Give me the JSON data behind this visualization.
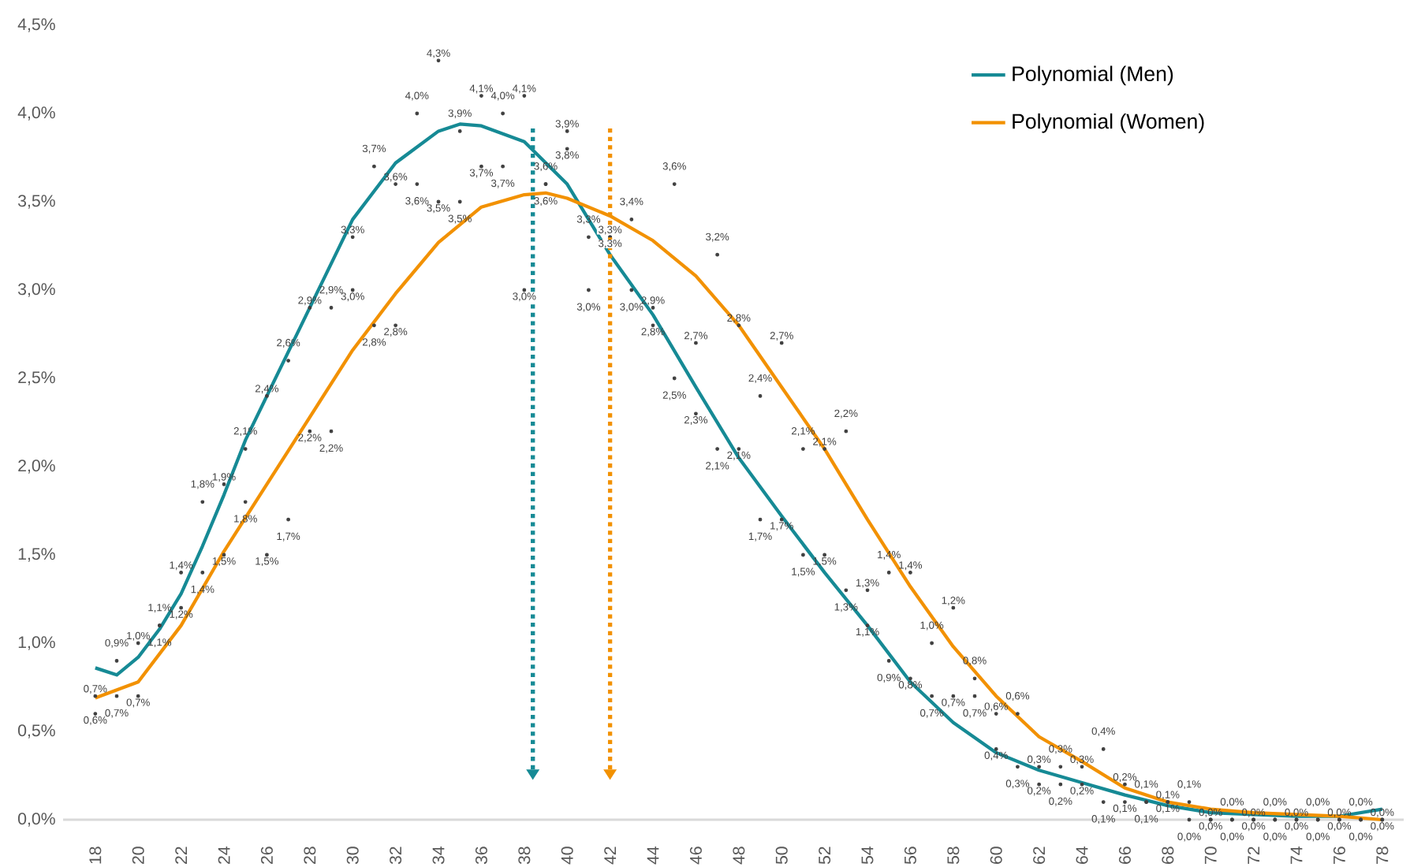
{
  "chart_data": {
    "type": "line",
    "xlim": [
      16.5,
      79
    ],
    "xticks": [
      18,
      20,
      22,
      24,
      26,
      28,
      30,
      32,
      34,
      36,
      38,
      40,
      42,
      44,
      46,
      48,
      50,
      52,
      54,
      56,
      58,
      60,
      62,
      64,
      66,
      68,
      70,
      72,
      74,
      76,
      78
    ],
    "ylim": [
      0,
      4.5
    ],
    "yticks": [
      {
        "value": 0,
        "label": "0,0%"
      },
      {
        "value": 0.5,
        "label": "0,5%"
      },
      {
        "value": 1,
        "label": "1,0%"
      },
      {
        "value": 1.5,
        "label": "1,5%"
      },
      {
        "value": 2,
        "label": "2,0%"
      },
      {
        "value": 2.5,
        "label": "2,5%"
      },
      {
        "value": 3,
        "label": "3,0%"
      },
      {
        "value": 3.5,
        "label": "3,5%"
      },
      {
        "value": 4,
        "label": "4,0%"
      },
      {
        "value": 4.5,
        "label": "4,5%"
      }
    ],
    "legend": "top right",
    "series": [
      {
        "name": "Polynomial (Men)",
        "color": "#168a95",
        "x": [
          18,
          19,
          20,
          21,
          22,
          23,
          24,
          25,
          26,
          27,
          28,
          30,
          32,
          34,
          35,
          36,
          38,
          40,
          42,
          44,
          46,
          48,
          50,
          52,
          54,
          56,
          58,
          60,
          62,
          64,
          66,
          68,
          70,
          72,
          74,
          76,
          78
        ],
        "values": [
          0.86,
          0.82,
          0.92,
          1.08,
          1.28,
          1.55,
          1.84,
          2.15,
          2.4,
          2.65,
          2.9,
          3.4,
          3.72,
          3.9,
          3.94,
          3.93,
          3.84,
          3.6,
          3.2,
          2.86,
          2.45,
          2.05,
          1.72,
          1.4,
          1.1,
          0.78,
          0.55,
          0.38,
          0.28,
          0.21,
          0.14,
          0.08,
          0.04,
          0.03,
          0.02,
          0.02,
          0.06
        ]
      },
      {
        "name": "Polynomial (Women)",
        "color": "#f29100",
        "x": [
          18,
          20,
          22,
          24,
          26,
          28,
          30,
          32,
          34,
          36,
          38,
          39,
          40,
          42,
          44,
          46,
          48,
          50,
          52,
          54,
          56,
          58,
          60,
          62,
          64,
          66,
          68,
          70,
          72,
          74,
          76,
          78
        ],
        "values": [
          0.69,
          0.78,
          1.1,
          1.52,
          1.9,
          2.28,
          2.66,
          2.98,
          3.27,
          3.47,
          3.54,
          3.55,
          3.52,
          3.42,
          3.28,
          3.08,
          2.8,
          2.45,
          2.1,
          1.7,
          1.32,
          0.98,
          0.7,
          0.47,
          0.33,
          0.18,
          0.1,
          0.06,
          0.04,
          0.03,
          0.02,
          0.0
        ]
      },
      {
        "type": "scatter",
        "marker": "circle",
        "color": "#404040",
        "x": [
          18,
          19,
          20,
          21,
          22,
          23,
          24,
          25,
          26,
          27,
          28,
          29,
          30,
          31,
          32,
          33,
          34,
          35,
          36,
          37,
          38,
          39,
          40,
          41,
          42,
          43,
          44,
          45,
          46,
          47,
          48,
          49,
          50,
          51,
          52,
          53,
          54,
          55,
          56,
          57,
          58,
          59,
          60,
          61,
          62,
          63,
          64,
          65,
          66,
          67,
          68,
          69,
          70,
          71,
          72,
          73,
          74,
          75,
          76,
          77,
          78
        ],
        "values": [
          0.7,
          0.9,
          1.0,
          1.1,
          1.4,
          1.8,
          1.9,
          2.1,
          2.4,
          2.6,
          2.9,
          2.9,
          3.3,
          3.7,
          3.6,
          4.0,
          4.3,
          3.9,
          4.1,
          4.0,
          4.1,
          3.6,
          3.9,
          3.3,
          3.3,
          3.0,
          2.8,
          2.5,
          2.3,
          2.1,
          2.1,
          1.7,
          1.7,
          1.5,
          1.5,
          1.3,
          1.1,
          0.9,
          0.8,
          0.7,
          0.7,
          0.7,
          0.4,
          0.3,
          0.2,
          0.2,
          0.2,
          0.1,
          0.1,
          0.1,
          0.1,
          0.0,
          0.0,
          0.0,
          0.0,
          0.0,
          0.0,
          0.0,
          0.0,
          0.0,
          0.0
        ],
        "value_labels": [
          "0,7%",
          "0,9%",
          "1,0%",
          "1,1%",
          "1,4%",
          "1,8%",
          "1,9%",
          "2,1%",
          "2,4%",
          "2,6%",
          "2,9%",
          "2,9%",
          "3,3%",
          "3,7%",
          "3,6%",
          "4,0%",
          "4,3%",
          "3,9%",
          "4,1%",
          "4,0%",
          "4,1%",
          "3,6%",
          "3,9%",
          "3,3%",
          "3,3%",
          "3,0%",
          "2,8%",
          "2,5%",
          "2,3%",
          "2,1%",
          "2,1%",
          "1,7%",
          "1,7%",
          "1,5%",
          "1,5%",
          "1,3%",
          "1,1%",
          "0,9%",
          "0,8%",
          "0,7%",
          "0,7%",
          "0,7%",
          "0,4%",
          "0,3%",
          "0,2%",
          "0,2%",
          "0,2%",
          "0,1%",
          "0,1%",
          "0,1%",
          "0,1%",
          "0,0%",
          "0,0%",
          "0,0%",
          "0,0%",
          "0,0%",
          "0,0%",
          "0,0%",
          "0,0%",
          "0,0%",
          "0,0%"
        ]
      },
      {
        "type": "scatter",
        "marker": "circle",
        "color": "#404040",
        "x": [
          18,
          19,
          20,
          21,
          22,
          23,
          24,
          25,
          26,
          27,
          28,
          29,
          30,
          31,
          32,
          33,
          34,
          35,
          36,
          37,
          38,
          39,
          40,
          41,
          42,
          43,
          44,
          45,
          46,
          47,
          48,
          49,
          50,
          51,
          52,
          53,
          54,
          55,
          56,
          57,
          58,
          59,
          60,
          61,
          62,
          63,
          64,
          65,
          66,
          67,
          68,
          69,
          70,
          71,
          72,
          73,
          74,
          75,
          76,
          77,
          78
        ],
        "values": [
          0.6,
          0.7,
          0.7,
          1.1,
          1.2,
          1.4,
          1.5,
          1.8,
          1.5,
          1.7,
          2.2,
          2.2,
          3.0,
          2.8,
          2.8,
          3.6,
          3.5,
          3.5,
          3.7,
          3.7,
          3.0,
          3.6,
          3.8,
          3.0,
          3.3,
          3.4,
          2.9,
          3.6,
          2.7,
          3.2,
          2.8,
          2.4,
          2.7,
          2.1,
          2.1,
          2.2,
          1.3,
          1.4,
          1.4,
          1.0,
          1.2,
          0.8,
          0.6,
          0.6,
          0.3,
          0.3,
          0.3,
          0.4,
          0.2,
          0.1,
          0.1,
          0.1,
          0.0,
          0.0,
          0.0,
          0.0,
          0.0,
          0.0,
          0.0,
          0.0,
          0.0
        ],
        "value_labels": [
          "0,6%",
          "0,7%",
          "0,7%",
          "1,1%",
          "1,2%",
          "1,4%",
          "1,5%",
          "1,8%",
          "1,5%",
          "1,7%",
          "2,2%",
          "2,2%",
          "3,0%",
          "2,8%",
          "2,8%",
          "3,6%",
          "3,5%",
          "3,5%",
          "3,7%",
          "3,7%",
          "3,0%",
          "3,6%",
          "3,8%",
          "3,0%",
          "3,3%",
          "3,4%",
          "2,9%",
          "3,6%",
          "2,7%",
          "3,2%",
          "2,8%",
          "2,4%",
          "2,7%",
          "2,1%",
          "2,1%",
          "2,2%",
          "1,3%",
          "1,4%",
          "1,4%",
          "1,0%",
          "1,2%",
          "0,8%",
          "0,6%",
          "0,6%",
          "0,3%",
          "0,3%",
          "0,3%",
          "0,4%",
          "0,2%",
          "0,1%",
          "0,1%",
          "0,1%",
          "0,0%",
          "0,0%",
          "0,0%",
          "0,0%",
          "0,0%",
          "0,0%",
          "0,0%",
          "0,0%",
          "0,0%"
        ]
      }
    ],
    "ref_lines": [
      {
        "axis": "x",
        "value": 38.4,
        "color": "#168a95",
        "line_style": "dotted"
      },
      {
        "axis": "x",
        "value": 42,
        "color": "#f29100",
        "line_style": "dotted"
      }
    ]
  }
}
